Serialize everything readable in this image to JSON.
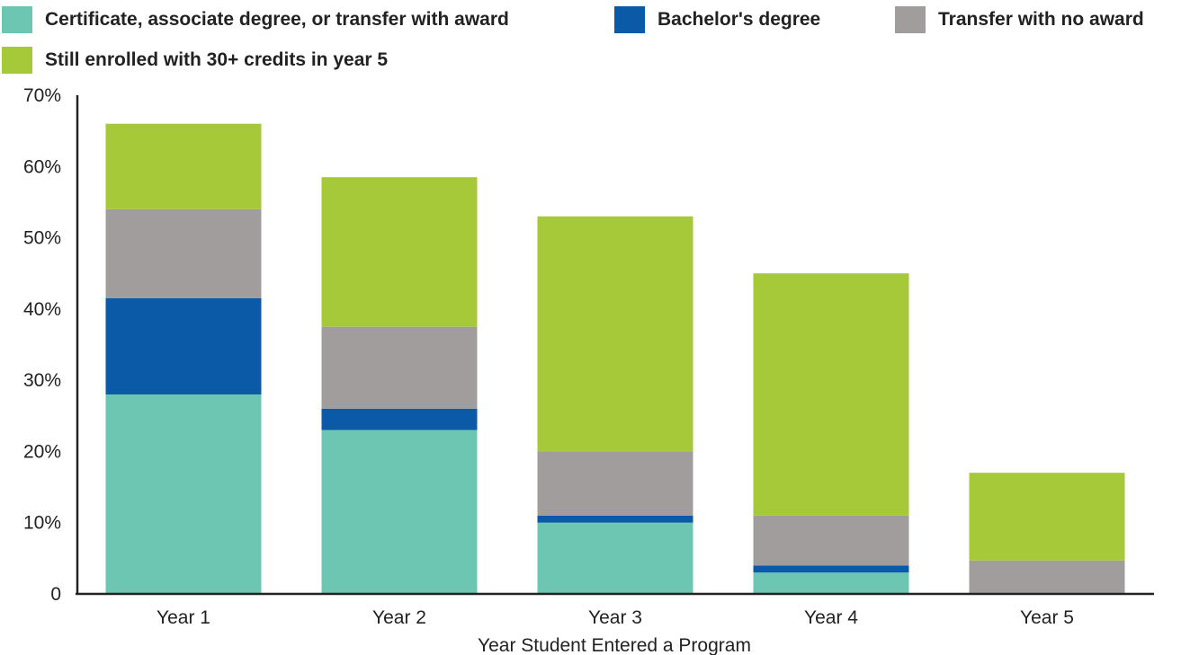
{
  "chart_data": {
    "type": "bar",
    "stacked": true,
    "title": "",
    "xlabel": "Year Student Entered a Program",
    "ylabel": "",
    "ylim": [
      0,
      70
    ],
    "yticks": [
      0,
      10,
      20,
      30,
      40,
      50,
      60,
      70
    ],
    "ytick_labels": [
      "0",
      "10%",
      "20%",
      "30%",
      "40%",
      "50%",
      "60%",
      "70%"
    ],
    "categories": [
      "Year 1",
      "Year 2",
      "Year 3",
      "Year 4",
      "Year 5"
    ],
    "legend_position": "top",
    "grid": false,
    "series": [
      {
        "name": "Certificate, associate degree, or transfer with award",
        "color": "#6cc6b1",
        "values": [
          28,
          23,
          10,
          3,
          0
        ]
      },
      {
        "name": "Bachelor's degree",
        "color": "#0a5aa8",
        "values": [
          13.5,
          3,
          1,
          1,
          0
        ]
      },
      {
        "name": "Transfer with no award",
        "color": "#a19d9d",
        "values": [
          12.5,
          11.5,
          9,
          7,
          4.7
        ]
      },
      {
        "name": "Still enrolled with 30+ credits in year 5",
        "color": "#a6c93a",
        "values": [
          12,
          21,
          33,
          34,
          12.3
        ]
      }
    ]
  }
}
